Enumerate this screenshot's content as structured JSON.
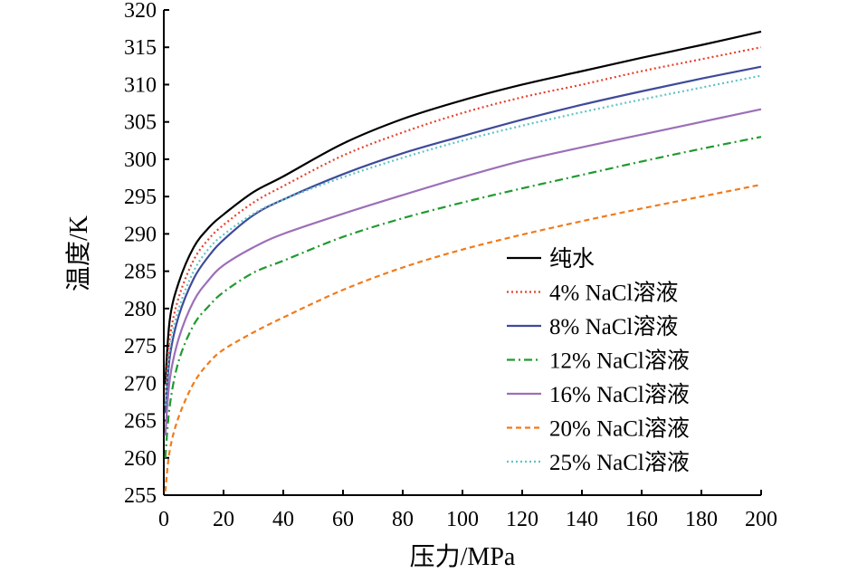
{
  "chart_data": {
    "type": "line",
    "title": "",
    "xlabel": "压力/MPa",
    "ylabel": "温度/K",
    "xlim": [
      0,
      200
    ],
    "ylim": [
      255,
      320
    ],
    "xticks": [
      0,
      20,
      40,
      60,
      80,
      100,
      120,
      140,
      160,
      180,
      200
    ],
    "yticks": [
      255,
      260,
      265,
      270,
      275,
      280,
      285,
      290,
      295,
      300,
      305,
      310,
      315,
      320
    ],
    "grid": false,
    "legend_position": "bottom-right",
    "x": [
      0.5,
      2,
      5,
      10,
      15,
      20,
      30,
      40,
      60,
      80,
      100,
      120,
      140,
      160,
      180,
      200
    ],
    "series": [
      {
        "name": "纯水",
        "color": "#000000",
        "dash": "solid",
        "values": [
          270,
          278.5,
          283.5,
          288.2,
          290.8,
          292.6,
          295.6,
          297.7,
          302.1,
          305.4,
          307.9,
          310.0,
          311.8,
          313.6,
          315.3,
          317.1
        ]
      },
      {
        "name": "4% NaCl溶液",
        "color": "#e8412c",
        "dash": "dotted",
        "values": [
          268.5,
          276,
          281.5,
          286.5,
          289.3,
          291.2,
          294.2,
          296.4,
          300.5,
          303.6,
          306.2,
          308.3,
          310.0,
          311.8,
          313.4,
          315.0
        ]
      },
      {
        "name": "8% NaCl溶液",
        "color": "#3f4a9a",
        "dash": "solid",
        "values": [
          266,
          273.5,
          279,
          284,
          287,
          289.2,
          292.5,
          294.6,
          298.0,
          300.8,
          303.1,
          305.3,
          307.3,
          309.1,
          310.8,
          312.4
        ]
      },
      {
        "name": "12% NaCl溶液",
        "color": "#1f9a2e",
        "dash": "dashdot",
        "values": [
          260,
          267,
          273,
          277.8,
          280.3,
          282.2,
          284.8,
          286.4,
          289.6,
          292.1,
          294.2,
          296.1,
          297.9,
          299.7,
          301.4,
          303.0
        ]
      },
      {
        "name": "16% NaCl溶液",
        "color": "#9c6fb8",
        "dash": "solid",
        "values": [
          263,
          270.5,
          276,
          281,
          283.8,
          285.8,
          288.2,
          290.0,
          292.7,
          295.2,
          297.6,
          299.8,
          301.6,
          303.3,
          305.0,
          306.7
        ]
      },
      {
        "name": "20% NaCl溶液",
        "color": "#f07b1c",
        "dash": "dashed",
        "values": [
          255.5,
          261,
          265.5,
          270,
          272.7,
          274.5,
          276.8,
          278.8,
          282.5,
          285.5,
          287.9,
          289.9,
          291.7,
          293.4,
          295.0,
          296.6
        ]
      },
      {
        "name": "25% NaCl溶液",
        "color": "#5fc3c6",
        "dash": "dotted",
        "values": [
          267,
          274.5,
          280,
          285,
          288,
          289.9,
          292.7,
          294.6,
          297.6,
          300.2,
          302.5,
          304.5,
          306.3,
          308.0,
          309.6,
          311.2
        ]
      }
    ]
  }
}
